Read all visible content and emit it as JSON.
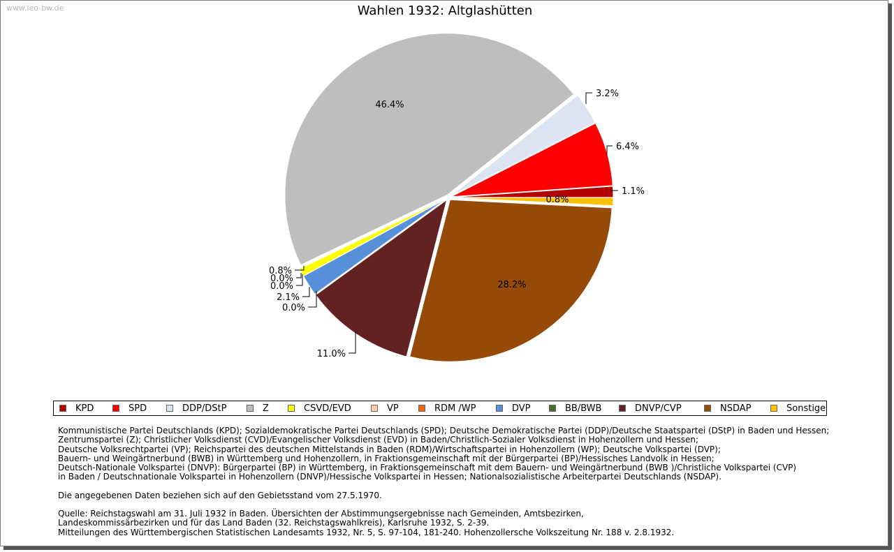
{
  "watermark": "www.leo-bw.de",
  "chart_data": {
    "type": "pie",
    "title": "Wahlen 1932: Altglashütten",
    "slices": [
      {
        "name": "KPD",
        "value": 1.1,
        "label": "1.1%",
        "color": "#b40000"
      },
      {
        "name": "SPD",
        "value": 6.4,
        "label": "6.4%",
        "color": "#ff0000"
      },
      {
        "name": "DDP/DStP",
        "value": 3.2,
        "label": "3.2%",
        "color": "#dce4f2"
      },
      {
        "name": "Z",
        "value": 46.4,
        "label": "46.4%",
        "color": "#bebebe"
      },
      {
        "name": "CSVD/EVD",
        "value": 0.8,
        "label": "0.8%",
        "color": "#ffff00"
      },
      {
        "name": "VP",
        "value": 0.0,
        "label": "0.0%",
        "color": "#ffcfb0"
      },
      {
        "name": "RDM /WP",
        "value": 0.0,
        "label": "0.0%",
        "color": "#ee6a10"
      },
      {
        "name": "DVP",
        "value": 2.1,
        "label": "2.1%",
        "color": "#5590d8"
      },
      {
        "name": "BB/BWB",
        "value": 0.0,
        "label": "0.0%",
        "color": "#4a6a28"
      },
      {
        "name": "DNVP/CVP",
        "value": 11.0,
        "label": "11.0%",
        "color": "#632222"
      },
      {
        "name": "NSDAP",
        "value": 28.2,
        "label": "28.2%",
        "color": "#954a08"
      },
      {
        "name": "Sonstige",
        "value": 0.8,
        "label": "0.8%",
        "color": "#ffc000"
      }
    ],
    "legend_position": "bottom"
  },
  "legend": [
    "KPD",
    "SPD",
    "DDP/DStP",
    "Z",
    "CSVD/EVD",
    "VP",
    "RDM /WP",
    "DVP",
    "BB/BWB",
    "DNVP/CVP",
    "NSDAP",
    "Sonstige"
  ],
  "notes": {
    "lines": [
      "Kommunistische Partei Deutschlands (KPD); Sozialdemokratische Partei Deutschlands (SPD); Deutsche Demokratische Partei (DDP)/Deutsche Staatspartei (DStP) in Baden und Hessen;",
      "Zentrumspartei (Z); Christlicher Volksdienst (CVD)/Evangelischer Volksdienst (EVD) in Baden/Christlich-Sozialer Volksdienst in Hohenzollern und Hessen;",
      "Deutsche Volksrechtpartei (VP); Reichspartei des deutschen Mittelstands in Baden (RDM)/Wirtschaftspartei in Hohenzollern (WP); Deutsche Volkspartei (DVP);",
      "Bauern- und Weingärtnerbund (BWB) in Württemberg und Hohenzollern, in Fraktionsgemeinschaft mit der Bürgerpartei (BP)/Hessisches Landvolk in Hessen;",
      "Deutsch-Nationale Volkspartei (DNVP): Bürgerpartei (BP) in Württemberg, in Fraktionsgemeinschaft mit dem Bauern- und Weingärtnerbund (BWB )/Christliche Volkspartei (CVP)",
      "in Baden / Deutschnationale Volkspartei in Hohenzollern (DNVP)/Hessische Volkspartei in Hessen; Nationalsozialistische Arbeiterpartei Deutschlands (NSDAP)."
    ],
    "data_note": "Die angegebenen Daten beziehen sich auf den Gebietsstand vom 27.5.1970.",
    "source_lines": [
      "Quelle: Reichstagswahl am 31. Juli 1932 in Baden. Übersichten der Abstimmungsergebnisse nach Gemeinden, Amtsbezirken,",
      "Landeskommissärbezirken und für das Land Baden (32. Reichstagswahlkreis), Karlsruhe 1932, S. 2-39.",
      "Mitteilungen des Württembergischen Statistischen Landesamts 1932, Nr. 5, S. 97-104, 181-240. Hohenzollersche Volkszeitung Nr. 188 v. 2.8.1932."
    ]
  }
}
